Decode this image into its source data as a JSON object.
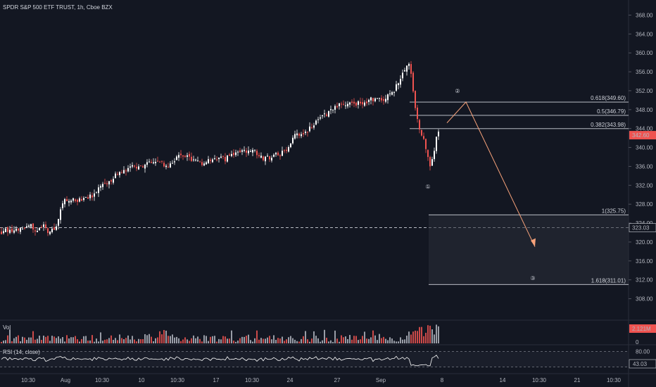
{
  "title": "SPDR S&P 500 ETF TRUST, 1h, Cboe BZX",
  "chart_data": {
    "type": "candlestick",
    "ylim": [
      306,
      370
    ],
    "price_ticks": [
      "368.00",
      "364.00",
      "360.00",
      "356.00",
      "352.00",
      "348.00",
      "344.00",
      "340.00",
      "336.00",
      "332.00",
      "328.00",
      "324.00",
      "320.00",
      "316.00",
      "312.00",
      "308.00"
    ],
    "price_tick_values": [
      368,
      364,
      360,
      356,
      352,
      348,
      344,
      340,
      336,
      332,
      328,
      324,
      320,
      316,
      312,
      308
    ],
    "time_labels": [
      "10:30",
      "Aug",
      "10:30",
      "10",
      "10:30",
      "17",
      "10:30",
      "24",
      "27",
      "Sep",
      "8",
      "14",
      "10:30",
      "21",
      "10:30"
    ],
    "current_price": {
      "label": "342.60",
      "value": 342.6,
      "color": "#ef5350"
    },
    "reference_price": {
      "label": "323.03",
      "value": 323.03
    },
    "close_path": [
      [
        0,
        322
      ],
      [
        15,
        322.6
      ],
      [
        30,
        323
      ],
      [
        45,
        323.6
      ],
      [
        50,
        322.4
      ],
      [
        60,
        323.6
      ],
      [
        70,
        322
      ],
      [
        80,
        323.4
      ],
      [
        90,
        329
      ],
      [
        110,
        329
      ],
      [
        130,
        329.8
      ],
      [
        150,
        332.4
      ],
      [
        170,
        334.6
      ],
      [
        190,
        336
      ],
      [
        210,
        336.4
      ],
      [
        225,
        337.4
      ],
      [
        238,
        335.6
      ],
      [
        250,
        338
      ],
      [
        270,
        337.8
      ],
      [
        290,
        336.6
      ],
      [
        305,
        337.6
      ],
      [
        320,
        337.6
      ],
      [
        340,
        339
      ],
      [
        360,
        339.4
      ],
      [
        372,
        337.6
      ],
      [
        390,
        338.2
      ],
      [
        408,
        339.2
      ],
      [
        416,
        342.4
      ],
      [
        430,
        342.6
      ],
      [
        445,
        344.6
      ],
      [
        460,
        346.6
      ],
      [
        475,
        348.8
      ],
      [
        490,
        349
      ],
      [
        510,
        349.4
      ],
      [
        530,
        350.2
      ],
      [
        545,
        350.2
      ],
      [
        560,
        351.8
      ],
      [
        568,
        354.8
      ],
      [
        575,
        356.4
      ],
      [
        582,
        357.6
      ],
      [
        585,
        354.8
      ],
      [
        588,
        350.8
      ],
      [
        591,
        346.8
      ],
      [
        596,
        344.2
      ],
      [
        602,
        341.8
      ],
      [
        607,
        338.2
      ],
      [
        610,
        336
      ],
      [
        615,
        338
      ],
      [
        620,
        341.8
      ],
      [
        625,
        344.2
      ]
    ],
    "fibonacci": [
      {
        "label": "0.618(349.60)",
        "value": 349.6
      },
      {
        "label": "0.5(346.79)",
        "value": 346.79
      },
      {
        "label": "0.382(343.98)",
        "value": 343.98
      },
      {
        "label": "1(325.75)",
        "value": 325.75
      },
      {
        "label": "1.618(311.01)",
        "value": 311.01
      }
    ],
    "waves": [
      {
        "label": "①"
      },
      {
        "label": "②"
      },
      {
        "label": "③"
      }
    ],
    "volume": {
      "label": "Vol",
      "value_label": "2.121M",
      "zero_label": "0",
      "up_color": "#b2b5be",
      "down_color": "#ef5350"
    },
    "rsi": {
      "label": "RSI (14, close)",
      "upper_label": "80.00",
      "value_label": "43.03",
      "upper": 80,
      "lower": 20,
      "line_color": "#ffffff"
    },
    "colors": {
      "up": "#ffffff",
      "down": "#ef5350",
      "projection": "#f7a27a"
    }
  }
}
